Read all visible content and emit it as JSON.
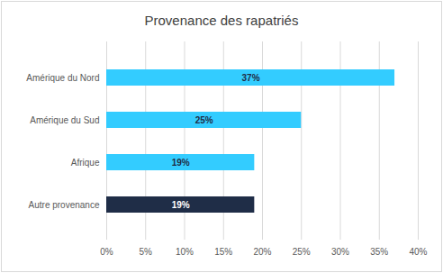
{
  "chart_data": {
    "type": "bar",
    "title": "Provenance des rapatriés",
    "orientation": "horizontal",
    "categories": [
      "Amérique du Nord",
      "Amérique du Sud",
      "Afrique",
      "Autre provenance"
    ],
    "values": [
      37,
      25,
      19,
      19
    ],
    "value_labels": [
      "37%",
      "25%",
      "19%",
      "19%"
    ],
    "colors": [
      "#33ccff",
      "#33ccff",
      "#33ccff",
      "#1f2d47"
    ],
    "xlim": [
      0,
      40
    ],
    "xticks": [
      {
        "value": 0,
        "label": "0%"
      },
      {
        "value": 5,
        "label": "5%"
      },
      {
        "value": 10,
        "label": "10%"
      },
      {
        "value": 15,
        "label": "15%"
      },
      {
        "value": 20,
        "label": "20%"
      },
      {
        "value": 25,
        "label": "25%"
      },
      {
        "value": 30,
        "label": "30%"
      },
      {
        "value": 35,
        "label": "35%"
      },
      {
        "value": 40,
        "label": "40%"
      }
    ],
    "grid": true,
    "data_labels": true
  }
}
